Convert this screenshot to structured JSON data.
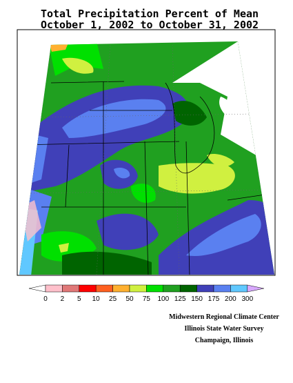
{
  "title": [
    "Total Precipitation Percent of Mean",
    "October 1, 2002 to October 31, 2002"
  ],
  "legend": {
    "labels": [
      "0",
      "2",
      "5",
      "10",
      "25",
      "50",
      "75",
      "100",
      "125",
      "150",
      "175",
      "200",
      "300"
    ],
    "colors": [
      "#ffc0cb",
      "#e07878",
      "#ff0000",
      "#ff6020",
      "#ffb030",
      "#d0f040",
      "#00e000",
      "#20a020",
      "#006400",
      "#4040b8",
      "#5a80f0",
      "#60c8ff"
    ]
  },
  "credits": [
    "Midwestern Regional Climate Center",
    "Illinois State Water Survey",
    "Champaign, Illinois"
  ]
}
